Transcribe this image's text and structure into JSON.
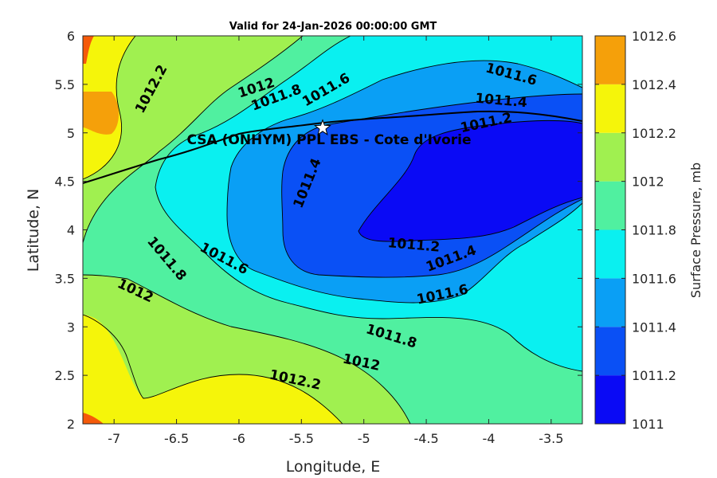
{
  "title": "Valid for 24-Jan-2026 00:00:00 GMT",
  "x_axis": {
    "label": "Longitude, E",
    "ticks": [
      "-7",
      "-6.5",
      "-6",
      "-5.5",
      "-5",
      "-4.5",
      "-4",
      "-3.5"
    ],
    "tick_values": [
      -7,
      -6.5,
      -6,
      -5.5,
      -5,
      -4.5,
      -4,
      -3.5
    ],
    "range": [
      -7.25,
      -3.25
    ]
  },
  "y_axis": {
    "label": "Latitude, N",
    "ticks": [
      "2",
      "2.5",
      "3",
      "3.5",
      "4",
      "4.5",
      "5",
      "5.5",
      "6"
    ],
    "tick_values": [
      2,
      2.5,
      3,
      3.5,
      4,
      4.5,
      5,
      5.5,
      6
    ],
    "range": [
      2,
      6
    ]
  },
  "colorbar": {
    "title": "Surface Pressure, mb",
    "labels": [
      "1011",
      "1011.2",
      "1011.4",
      "1011.6",
      "1011.8",
      "1012",
      "1012.2",
      "1012.4",
      "1012.6"
    ],
    "levels": [
      1011,
      1011.2,
      1011.4,
      1011.6,
      1011.8,
      1012,
      1012.2,
      1012.4,
      1012.6
    ],
    "colors": [
      "#0a0af5",
      "#0a50f5",
      "#0a9ff5",
      "#0af0f0",
      "#50f0a0",
      "#a0f050",
      "#f5f50a",
      "#f5a00a",
      "#f55a0a"
    ]
  },
  "site": {
    "label": "CSA (ONHYM) PPL EBS  - Cote d'Ivorie",
    "lon": -5.33,
    "lat": 5.05,
    "marker": "star-icon"
  },
  "contour_labels": [
    {
      "text": "1012.2",
      "lon": -6.7,
      "lat": 5.45
    },
    {
      "text": "1012",
      "lon": -5.86,
      "lat": 5.46
    },
    {
      "text": "1011.8",
      "lon": -5.7,
      "lat": 5.36
    },
    {
      "text": "1011.6",
      "lon": -5.3,
      "lat": 5.44
    },
    {
      "text": "1011.6",
      "lon": -3.82,
      "lat": 5.6
    },
    {
      "text": "1011.4",
      "lon": -3.9,
      "lat": 5.33
    },
    {
      "text": "1011.2",
      "lon": -4.02,
      "lat": 5.1
    },
    {
      "text": "1011.4",
      "lon": -5.45,
      "lat": 4.48
    },
    {
      "text": "1011.2",
      "lon": -4.6,
      "lat": 3.84
    },
    {
      "text": "1011.4",
      "lon": -4.3,
      "lat": 3.7
    },
    {
      "text": "1011.6",
      "lon": -4.37,
      "lat": 3.33
    },
    {
      "text": "1011.6",
      "lon": -6.12,
      "lat": 3.7
    },
    {
      "text": "1011.8",
      "lon": -6.58,
      "lat": 3.7
    },
    {
      "text": "1012",
      "lon": -6.83,
      "lat": 3.37
    },
    {
      "text": "1011.8",
      "lon": -4.78,
      "lat": 2.9
    },
    {
      "text": "1012",
      "lon": -5.02,
      "lat": 2.63
    },
    {
      "text": "1012.2",
      "lon": -5.55,
      "lat": 2.45
    }
  ]
}
